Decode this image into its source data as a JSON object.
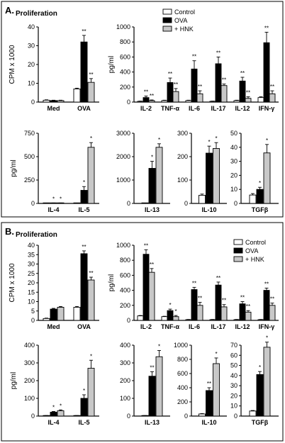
{
  "panels": [
    {
      "label": "A."
    },
    {
      "label": "B."
    }
  ],
  "colors": {
    "control": "#ffffff",
    "ova": "#000000",
    "hnk": "#c8c8c8"
  },
  "chart_data": [
    {
      "panel": "A.",
      "type": "bar",
      "title": "Proliferation",
      "ylabel": "CPM x 1000",
      "ylim": [
        0,
        40
      ],
      "yticks": [
        0,
        10,
        20,
        30,
        40
      ],
      "categories": [
        "Med",
        "OVA"
      ],
      "series": [
        {
          "values": [
            1.0,
            7.0
          ]
        },
        {
          "values": [
            0.8,
            32.0
          ]
        },
        {
          "values": [
            0.8,
            10.5
          ]
        }
      ],
      "errors": [
        [
          0.2,
          0.4
        ],
        [
          0.2,
          3.5
        ],
        [
          0.2,
          2.0
        ]
      ],
      "annotations": [
        [
          "",
          ""
        ],
        [
          "",
          "**"
        ],
        [
          "",
          "**"
        ]
      ]
    },
    {
      "panel": "A.",
      "type": "bar",
      "ylabel": "pg/ml",
      "ylim": [
        0,
        1000
      ],
      "yticks": [
        0,
        200,
        400,
        600,
        800,
        1000
      ],
      "categories": [
        "IL-2",
        "TNF-α",
        "IL-6",
        "IL-17",
        "IL-12",
        "IFN-γ"
      ],
      "legend": [
        "Control",
        "OVA",
        "+ HNK"
      ],
      "series": [
        {
          "name": "Control",
          "values": [
            10,
            20,
            20,
            10,
            20,
            60
          ]
        },
        {
          "name": "OVA",
          "values": [
            60,
            260,
            440,
            510,
            280,
            790
          ]
        },
        {
          "name": "+ HNK",
          "values": [
            20,
            140,
            110,
            220,
            50,
            110
          ]
        }
      ],
      "errors": [
        [
          3,
          5,
          5,
          3,
          5,
          10
        ],
        [
          20,
          60,
          110,
          90,
          50,
          140
        ],
        [
          8,
          40,
          40,
          20,
          20,
          40
        ]
      ],
      "annotations": [
        [
          "",
          "",
          "",
          "",
          "",
          ""
        ],
        [
          "**",
          "**",
          "**",
          "**",
          "**",
          "**"
        ],
        [
          "**",
          "**",
          "**",
          "**",
          "**",
          "**"
        ]
      ]
    },
    {
      "panel": "A.",
      "type": "bar",
      "ylabel": "pg/ml",
      "ylim": [
        0,
        750
      ],
      "yticks": [
        0,
        250,
        500,
        750
      ],
      "categories": [
        "IL-4",
        "IL-5"
      ],
      "series": [
        {
          "values": [
            2,
            2
          ]
        },
        {
          "values": [
            4,
            140
          ]
        },
        {
          "values": [
            4,
            600
          ]
        }
      ],
      "errors": [
        [
          1,
          1
        ],
        [
          1,
          40
        ],
        [
          1,
          50
        ]
      ],
      "annotations": [
        [
          "",
          ""
        ],
        [
          "*",
          "*"
        ],
        [
          "*",
          "*"
        ]
      ]
    },
    {
      "panel": "A.",
      "type": "bar",
      "ylim": [
        0,
        3000
      ],
      "yticks": [
        0,
        1000,
        2000,
        3000
      ],
      "categories": [
        "IL-13"
      ],
      "series": [
        {
          "values": [
            10
          ]
        },
        {
          "values": [
            1500
          ]
        },
        {
          "values": [
            2400
          ]
        }
      ],
      "errors": [
        [
          5
        ],
        [
          300
        ],
        [
          150
        ]
      ],
      "annotations": [
        [
          ""
        ],
        [
          "*"
        ],
        [
          "*"
        ]
      ]
    },
    {
      "panel": "A.",
      "type": "bar",
      "ylim": [
        0,
        300
      ],
      "yticks": [
        0,
        100,
        200,
        300
      ],
      "categories": [
        "IL-10"
      ],
      "series": [
        {
          "values": [
            35
          ]
        },
        {
          "values": [
            215
          ]
        },
        {
          "values": [
            235
          ]
        }
      ],
      "errors": [
        [
          5
        ],
        [
          30
        ],
        [
          25
        ]
      ],
      "annotations": [
        [
          ""
        ],
        [
          "*"
        ],
        [
          "*"
        ]
      ]
    },
    {
      "panel": "A.",
      "type": "bar",
      "ylim": [
        0,
        50
      ],
      "yticks": [
        0,
        10,
        20,
        30,
        40,
        50
      ],
      "categories": [
        "TGFβ"
      ],
      "series": [
        {
          "values": [
            6
          ]
        },
        {
          "values": [
            10
          ]
        },
        {
          "values": [
            36
          ]
        }
      ],
      "errors": [
        [
          1
        ],
        [
          1.5
        ],
        [
          6
        ]
      ],
      "annotations": [
        [
          ""
        ],
        [
          "*"
        ],
        [
          "*"
        ]
      ]
    },
    {
      "panel": "B.",
      "type": "bar",
      "title": "Proliferation",
      "ylabel": "CPM x 1000",
      "ylim": [
        0,
        40
      ],
      "yticks": [
        0,
        5,
        10,
        15,
        20,
        25,
        30,
        35,
        40
      ],
      "categories": [
        "Med",
        "OVA"
      ],
      "series": [
        {
          "values": [
            1.0,
            7.0
          ]
        },
        {
          "values": [
            6.0,
            35.5
          ]
        },
        {
          "values": [
            7.0,
            21.5
          ]
        }
      ],
      "errors": [
        [
          0.2,
          0.4
        ],
        [
          0.4,
          1.5
        ],
        [
          0.4,
          1.5
        ]
      ],
      "annotations": [
        [
          "",
          ""
        ],
        [
          "",
          "**"
        ],
        [
          "",
          "**"
        ]
      ]
    },
    {
      "panel": "B.",
      "type": "bar",
      "ylabel": "pg/ml",
      "ylim": [
        0,
        1000
      ],
      "yticks": [
        0,
        200,
        400,
        600,
        800,
        1000
      ],
      "categories": [
        "IL-2",
        "TNF-α",
        "IL-6",
        "IL-17",
        "IL-12",
        "IFN-γ"
      ],
      "legend": [
        "Control",
        "OVA",
        "+ HNK"
      ],
      "series": [
        {
          "name": "Control",
          "values": [
            60,
            50,
            10,
            10,
            10,
            10
          ]
        },
        {
          "name": "OVA",
          "values": [
            880,
            130,
            410,
            470,
            220,
            400
          ]
        },
        {
          "name": "+ HNK",
          "values": [
            640,
            50,
            200,
            180,
            110,
            200
          ]
        }
      ],
      "errors": [
        [
          5,
          5,
          3,
          3,
          3,
          3
        ],
        [
          60,
          20,
          30,
          40,
          30,
          30
        ],
        [
          50,
          15,
          40,
          30,
          20,
          30
        ]
      ],
      "annotations": [
        [
          "",
          "",
          "",
          "",
          "",
          ""
        ],
        [
          "**",
          "*",
          "**",
          "**",
          "**",
          "**"
        ],
        [
          "**",
          "*",
          "**",
          "**",
          "**",
          "**"
        ]
      ]
    },
    {
      "panel": "B.",
      "type": "bar",
      "ylabel": "pg/ml",
      "ylim": [
        0,
        400
      ],
      "yticks": [
        0,
        100,
        200,
        300,
        400
      ],
      "categories": [
        "IL-4",
        "IL-5"
      ],
      "series": [
        {
          "values": [
            2,
            2
          ]
        },
        {
          "values": [
            22,
            100
          ]
        },
        {
          "values": [
            30,
            270
          ]
        }
      ],
      "errors": [
        [
          1,
          1
        ],
        [
          4,
          20
        ],
        [
          5,
          45
        ]
      ],
      "annotations": [
        [
          "",
          ""
        ],
        [
          "*",
          "*"
        ],
        [
          "*",
          "*"
        ]
      ]
    },
    {
      "panel": "B.",
      "type": "bar",
      "ylim": [
        0,
        400
      ],
      "yticks": [
        0,
        100,
        200,
        300,
        400
      ],
      "categories": [
        "IL-13"
      ],
      "series": [
        {
          "values": [
            2
          ]
        },
        {
          "values": [
            225
          ]
        },
        {
          "values": [
            335
          ]
        }
      ],
      "errors": [
        [
          1
        ],
        [
          25
        ],
        [
          35
        ]
      ],
      "annotations": [
        [
          ""
        ],
        [
          "**"
        ],
        [
          "*"
        ]
      ]
    },
    {
      "panel": "B.",
      "type": "bar",
      "ylim": [
        0,
        1000
      ],
      "yticks": [
        0,
        200,
        400,
        600,
        800,
        1000
      ],
      "categories": [
        "IL-10"
      ],
      "series": [
        {
          "values": [
            30
          ]
        },
        {
          "values": [
            360
          ]
        },
        {
          "values": [
            740
          ]
        }
      ],
      "errors": [
        [
          5
        ],
        [
          40
        ],
        [
          80
        ]
      ],
      "annotations": [
        [
          ""
        ],
        [
          "**"
        ],
        [
          "*"
        ]
      ]
    },
    {
      "panel": "B.",
      "type": "bar",
      "ylim": [
        0,
        70
      ],
      "yticks": [
        0,
        10,
        20,
        30,
        40,
        50,
        60,
        70
      ],
      "categories": [
        "TGFβ"
      ],
      "series": [
        {
          "values": [
            5
          ]
        },
        {
          "values": [
            41
          ]
        },
        {
          "values": [
            68
          ]
        }
      ],
      "errors": [
        [
          0.5
        ],
        [
          3
        ],
        [
          5
        ]
      ],
      "annotations": [
        [
          ""
        ],
        [
          "*"
        ],
        [
          "*"
        ]
      ]
    }
  ]
}
